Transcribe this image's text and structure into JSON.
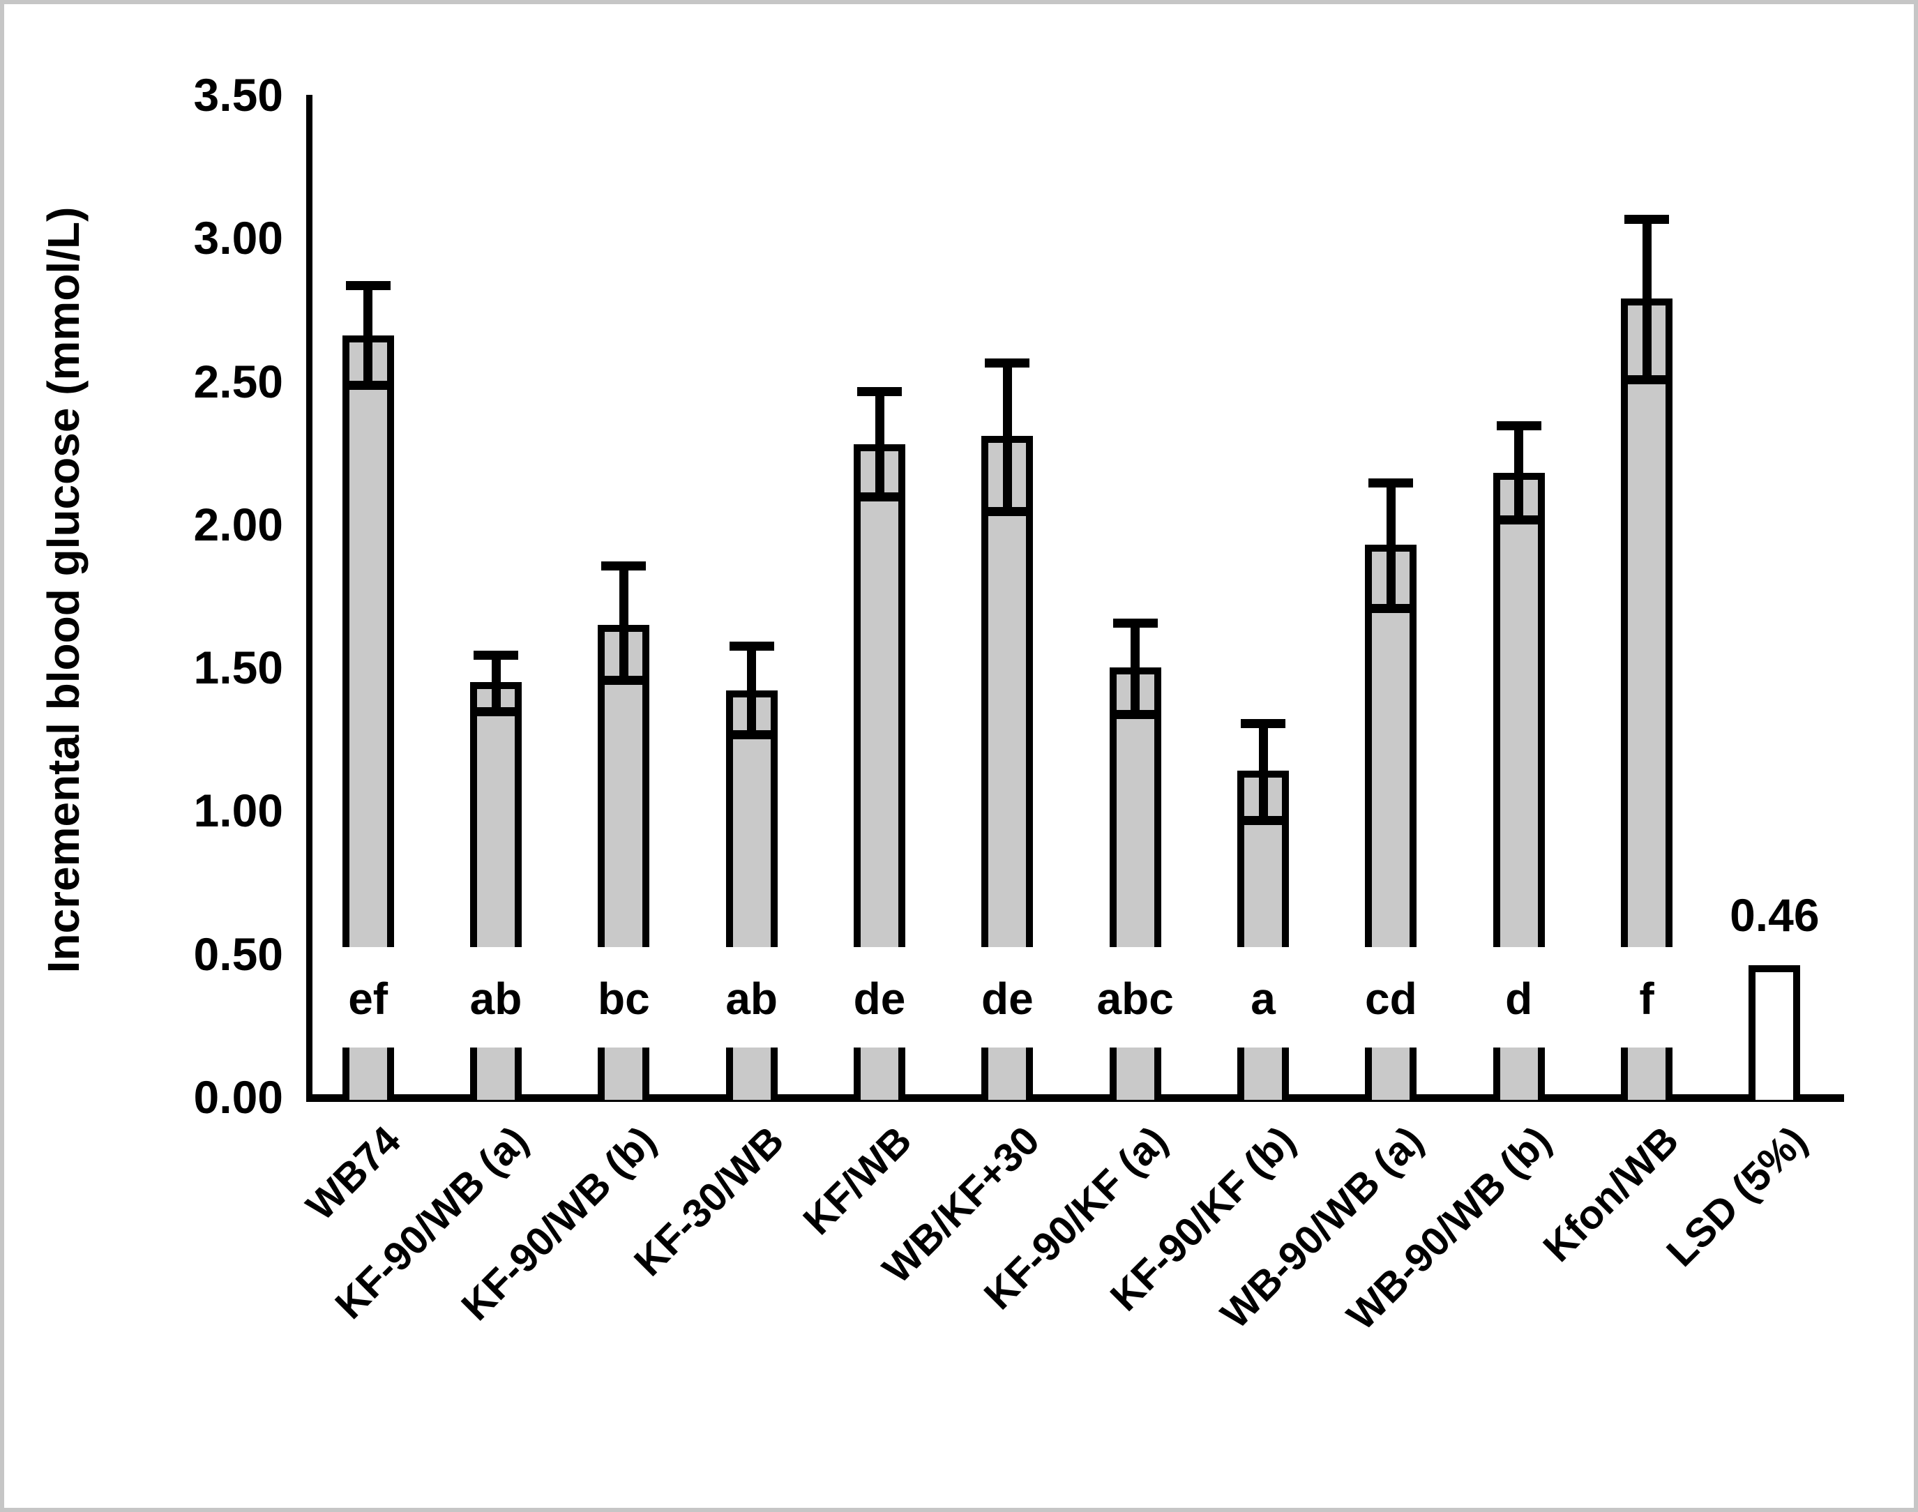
{
  "chart_data": {
    "type": "bar",
    "title": "",
    "xlabel": "",
    "ylabel": "Incremental blood glucose (mmol/L)",
    "ylim": [
      0,
      3.5
    ],
    "ytick_step": 0.5,
    "ytick_labels": [
      "3.50",
      "3.00",
      "2.50",
      "2.00",
      "1.50",
      "1.00",
      "0.50",
      "0.00"
    ],
    "grid": false,
    "legend": "none",
    "categories": [
      "WB74",
      "KF-90/WB (a)",
      "KF-90/WB (b)",
      "KF-30/WB",
      "KF/WB",
      "WB/KF+30",
      "KF-90/KF (a)",
      "KF-90/KF (b)",
      "WB-90/WB (a)",
      "WB-90/WB (b)",
      "Kfon/WB",
      "LSD (5%)"
    ],
    "values": [
      2.66,
      1.45,
      1.65,
      1.42,
      2.28,
      2.31,
      1.5,
      1.14,
      1.93,
      2.18,
      2.79,
      0.46
    ],
    "error_high": [
      2.85,
      1.56,
      1.87,
      1.59,
      2.48,
      2.58,
      1.67,
      1.32,
      2.16,
      2.36,
      3.08,
      null
    ],
    "error_low": [
      2.47,
      1.33,
      1.44,
      1.25,
      2.08,
      2.03,
      1.32,
      0.95,
      1.69,
      2.0,
      2.49,
      null
    ],
    "sig_letters": [
      "ef",
      "ab",
      "bc",
      "ab",
      "de",
      "de",
      "abc",
      "a",
      "cd",
      "d",
      "f",
      ""
    ],
    "lsd_value_label": "0.46",
    "colors": {
      "bar_fill": "#c9c9c9",
      "lsd_bar_fill": "#ffffff",
      "bar_stroke": "#000000",
      "axis": "#000000",
      "background": "#ffffff",
      "frame_border": "#c6c6c6"
    }
  }
}
